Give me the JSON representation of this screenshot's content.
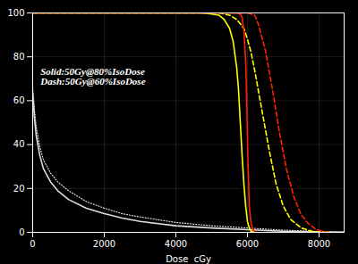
{
  "chart_data": {
    "type": "line",
    "xlabel": "Dose  cGy",
    "annotation": "Solid:50Gy@80%IsoDose\nDash:50Gy@60%IsoDose",
    "xlim": [
      0,
      8700
    ],
    "ylim": [
      0,
      100
    ],
    "xticks": [
      0,
      2000,
      4000,
      6000,
      8000
    ],
    "yticks": [
      0,
      20,
      40,
      60,
      80,
      100
    ],
    "grid": true,
    "series": [
      {
        "color": "#DDDDDD",
        "line_style": "solid",
        "x": [
          0,
          50,
          100,
          200,
          300,
          500,
          700,
          1000,
          1500,
          2000,
          2500,
          3000,
          4000,
          5000,
          6000,
          7000,
          8000,
          8700
        ],
        "values": [
          63,
          52,
          44,
          35,
          29,
          23,
          19,
          15,
          11,
          8.5,
          6.5,
          5,
          3,
          2,
          1.2,
          0.5,
          0.2,
          0.05
        ]
      },
      {
        "color": "#DDDDDD",
        "line_style": "dotted",
        "x": [
          0,
          50,
          100,
          200,
          300,
          500,
          700,
          1000,
          1500,
          2000,
          2500,
          3000,
          4000,
          5000,
          6000,
          7000,
          8000,
          8700
        ],
        "values": [
          66,
          56,
          48,
          39,
          33,
          27,
          23,
          19,
          14,
          11,
          8.5,
          7,
          4.5,
          3,
          2,
          1,
          0.4,
          0.1
        ]
      },
      {
        "color": "#FFFF00",
        "line_style": "solid",
        "x": [
          0,
          4700,
          5000,
          5200,
          5350,
          5500,
          5600,
          5700,
          5750,
          5800,
          5850,
          5900,
          5950,
          6000,
          6050,
          6100,
          6200
        ],
        "values": [
          100,
          100,
          99.5,
          99,
          97,
          93,
          87,
          75,
          65,
          50,
          35,
          22,
          12,
          5,
          2,
          0.5,
          0
        ]
      },
      {
        "color": "#FFFF00",
        "line_style": "dashed",
        "x": [
          0,
          5200,
          5500,
          5700,
          5900,
          6000,
          6100,
          6200,
          6400,
          6600,
          6800,
          7000,
          7200,
          7500,
          7800,
          8000,
          8200
        ],
        "values": [
          100,
          100,
          99,
          97,
          93,
          88,
          82,
          74,
          56,
          38,
          22,
          12,
          6,
          2,
          0.5,
          0.1,
          0
        ]
      },
      {
        "color": "#FF2200",
        "line_style": "solid",
        "x": [
          0,
          5700,
          5800,
          5850,
          5900,
          5950,
          5980,
          6010,
          6050,
          6100,
          6150,
          6200,
          6250
        ],
        "values": [
          100,
          100,
          99.5,
          98,
          92,
          78,
          60,
          35,
          12,
          4,
          1.5,
          0.3,
          0
        ]
      },
      {
        "color": "#FF2200",
        "line_style": "dashed",
        "x": [
          0,
          6000,
          6200,
          6300,
          6500,
          6700,
          6900,
          7100,
          7300,
          7500,
          7700,
          7900,
          8100,
          8300,
          8400
        ],
        "values": [
          100,
          100,
          99,
          95,
          83,
          65,
          45,
          28,
          16,
          8,
          4,
          1.5,
          0.4,
          0.05,
          0
        ]
      }
    ]
  }
}
